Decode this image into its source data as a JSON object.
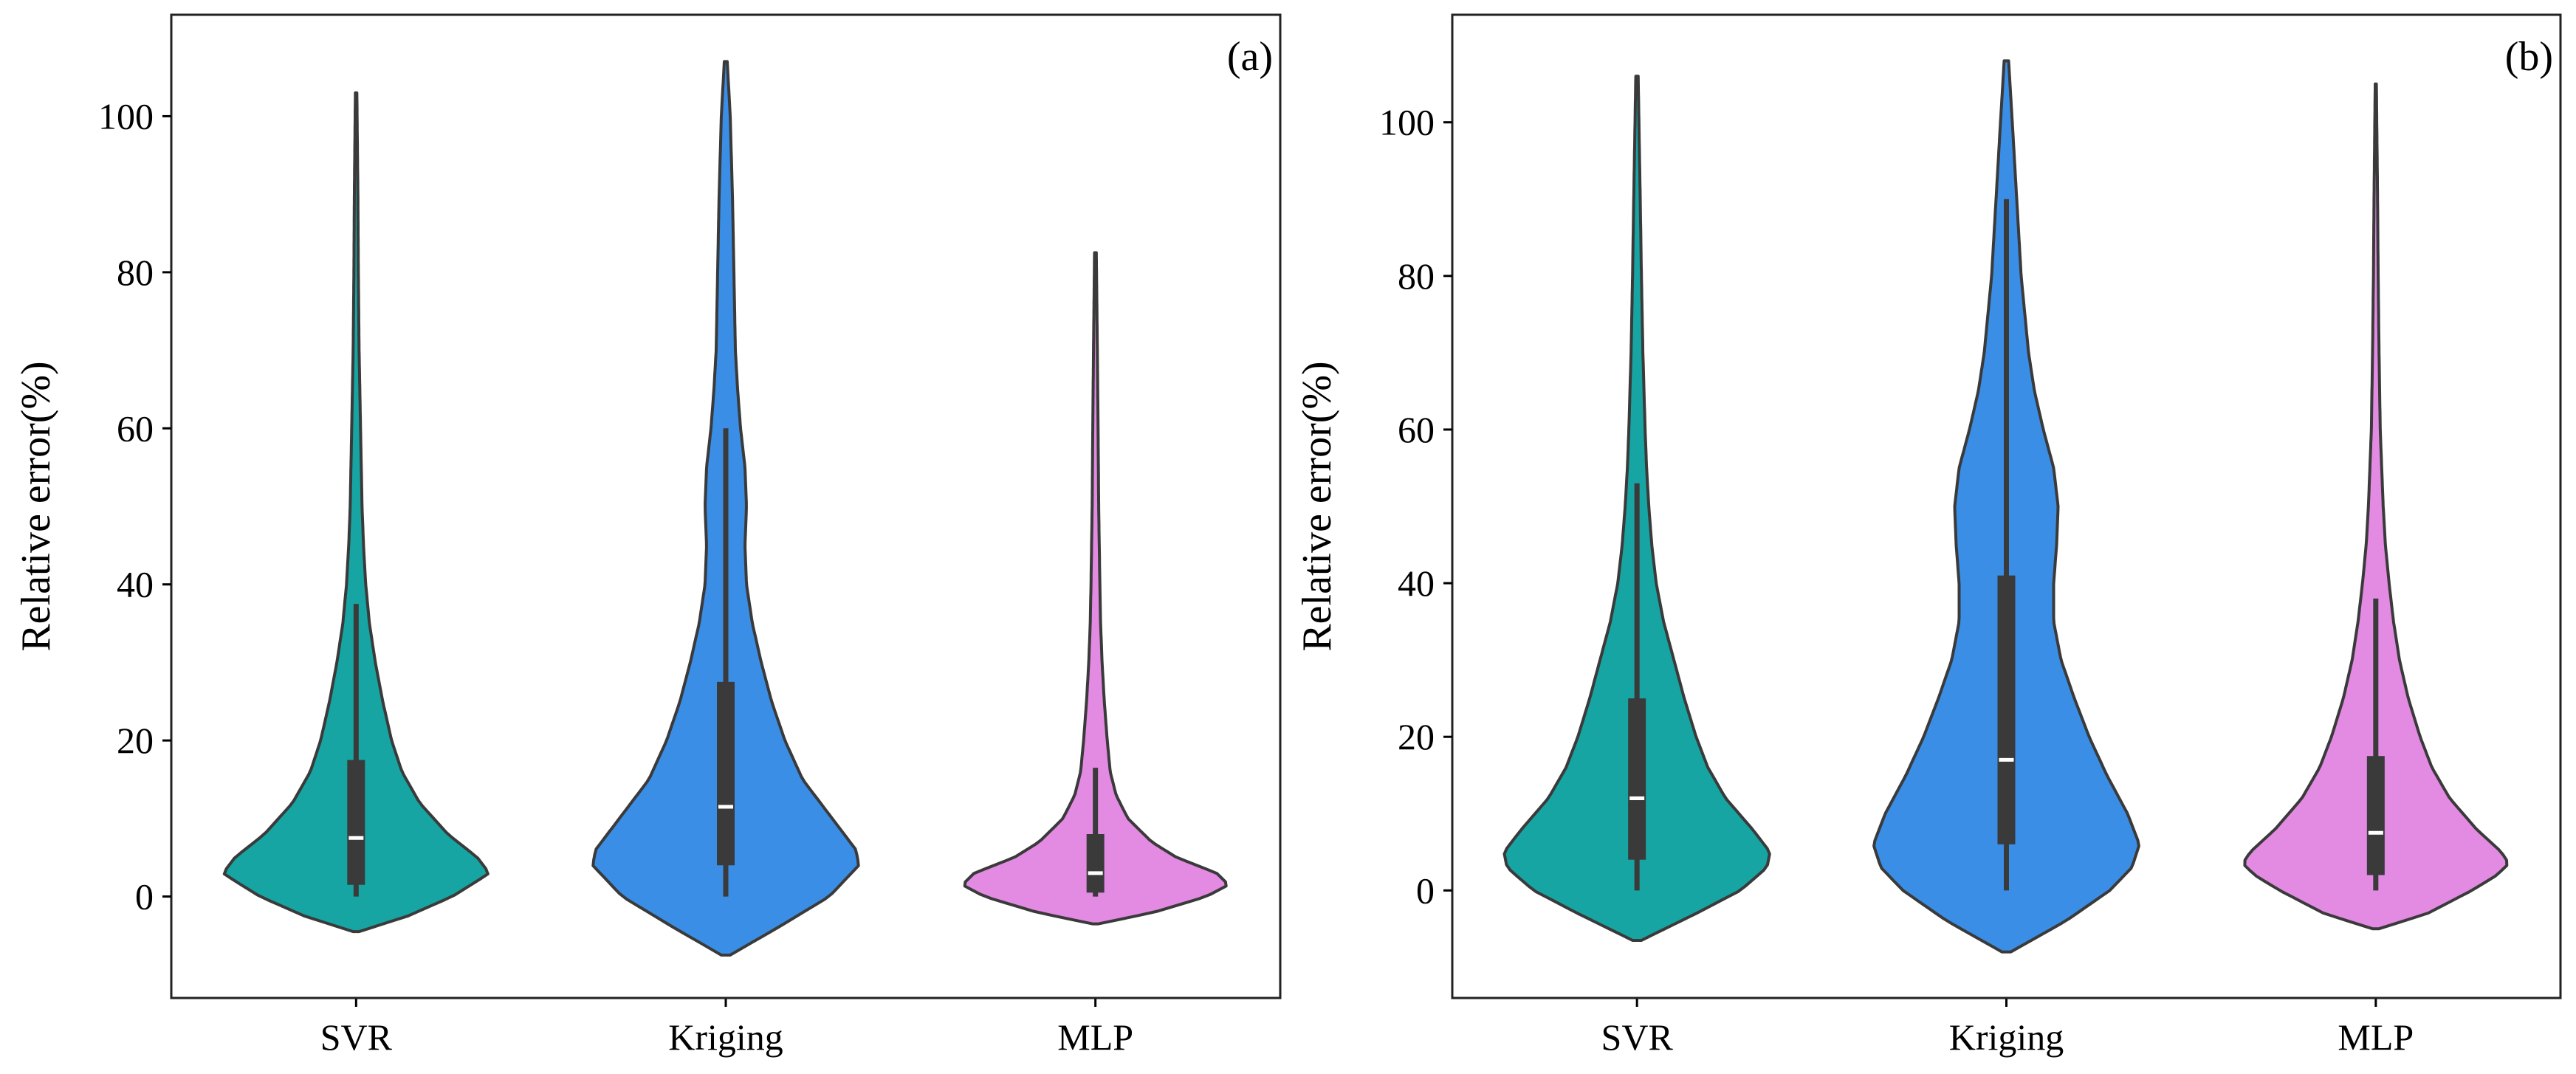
{
  "chart_data": [
    {
      "type": "violin",
      "panel_label": "(a)",
      "ylabel": "Relative error(%)",
      "ylim": [
        -13,
        113
      ],
      "yticks": [
        "0",
        "20",
        "40",
        "60",
        "80",
        "100"
      ],
      "categories": [
        "SVR",
        "Kriging",
        "MLP"
      ],
      "colors": [
        "#16a5a3",
        "#3a8ee6",
        "#e38ae3"
      ],
      "violins": [
        {
          "name": "SVR",
          "min": -4.5,
          "max": 103,
          "whisker_low": 0,
          "whisker_high": 37.5,
          "q1": 1.5,
          "median": 7.5,
          "q3": 17.5,
          "profile": [
            [
              -4.5,
              0.02
            ],
            [
              -2.5,
              0.35
            ],
            [
              0,
              0.65
            ],
            [
              2,
              0.82
            ],
            [
              3,
              0.9
            ],
            [
              5,
              0.82
            ],
            [
              8,
              0.62
            ],
            [
              12,
              0.43
            ],
            [
              16,
              0.31
            ],
            [
              20,
              0.24
            ],
            [
              25,
              0.18
            ],
            [
              30,
              0.13
            ],
            [
              35,
              0.09
            ],
            [
              40,
              0.065
            ],
            [
              45,
              0.05
            ],
            [
              50,
              0.04
            ],
            [
              55,
              0.035
            ],
            [
              60,
              0.03
            ],
            [
              65,
              0.025
            ],
            [
              70,
              0.02
            ],
            [
              80,
              0.015
            ],
            [
              90,
              0.012
            ],
            [
              103,
              0.005
            ]
          ]
        },
        {
          "name": "Kriging",
          "min": -7.5,
          "max": 107,
          "whisker_low": 0,
          "whisker_high": 60,
          "q1": 4,
          "median": 11.5,
          "q3": 27.5,
          "profile": [
            [
              -7.5,
              0.03
            ],
            [
              -4,
              0.35
            ],
            [
              0,
              0.7
            ],
            [
              4,
              0.9
            ],
            [
              6,
              0.88
            ],
            [
              10,
              0.72
            ],
            [
              15,
              0.52
            ],
            [
              20,
              0.4
            ],
            [
              25,
              0.31
            ],
            [
              30,
              0.24
            ],
            [
              35,
              0.18
            ],
            [
              40,
              0.14
            ],
            [
              45,
              0.13
            ],
            [
              50,
              0.14
            ],
            [
              55,
              0.13
            ],
            [
              60,
              0.1
            ],
            [
              65,
              0.08
            ],
            [
              70,
              0.065
            ],
            [
              80,
              0.055
            ],
            [
              90,
              0.045
            ],
            [
              100,
              0.03
            ],
            [
              107,
              0.01
            ]
          ]
        },
        {
          "name": "MLP",
          "min": -3.5,
          "max": 82.5,
          "whisker_low": 0,
          "whisker_high": 16.5,
          "q1": 0.5,
          "median": 3,
          "q3": 8,
          "profile": [
            [
              -3.5,
              0.02
            ],
            [
              -2,
              0.4
            ],
            [
              0,
              0.75
            ],
            [
              1.5,
              0.9
            ],
            [
              3,
              0.82
            ],
            [
              5,
              0.55
            ],
            [
              7,
              0.38
            ],
            [
              10,
              0.22
            ],
            [
              13,
              0.14
            ],
            [
              16,
              0.1
            ],
            [
              20,
              0.08
            ],
            [
              25,
              0.06
            ],
            [
              30,
              0.045
            ],
            [
              35,
              0.035
            ],
            [
              40,
              0.03
            ],
            [
              50,
              0.022
            ],
            [
              60,
              0.018
            ],
            [
              70,
              0.013
            ],
            [
              82.5,
              0.006
            ]
          ]
        }
      ]
    },
    {
      "type": "violin",
      "panel_label": "(b)",
      "ylabel": "Relative error(%)",
      "ylim": [
        -14,
        114
      ],
      "yticks": [
        "0",
        "20",
        "40",
        "60",
        "80",
        "100"
      ],
      "categories": [
        "SVR",
        "Kriging",
        "MLP"
      ],
      "colors": [
        "#16a5a3",
        "#3a8ee6",
        "#e38ae3"
      ],
      "violins": [
        {
          "name": "SVR",
          "min": -6.5,
          "max": 106,
          "whisker_low": 0,
          "whisker_high": 53,
          "q1": 4,
          "median": 12,
          "q3": 25,
          "profile": [
            [
              -6.5,
              0.03
            ],
            [
              -3,
              0.4
            ],
            [
              0,
              0.7
            ],
            [
              3,
              0.88
            ],
            [
              5,
              0.9
            ],
            [
              8,
              0.78
            ],
            [
              12,
              0.6
            ],
            [
              16,
              0.48
            ],
            [
              20,
              0.4
            ],
            [
              25,
              0.32
            ],
            [
              30,
              0.25
            ],
            [
              35,
              0.18
            ],
            [
              40,
              0.13
            ],
            [
              45,
              0.1
            ],
            [
              50,
              0.08
            ],
            [
              55,
              0.065
            ],
            [
              60,
              0.055
            ],
            [
              70,
              0.04
            ],
            [
              80,
              0.03
            ],
            [
              90,
              0.022
            ],
            [
              106,
              0.008
            ]
          ]
        },
        {
          "name": "Kriging",
          "min": -8,
          "max": 108,
          "whisker_low": 0,
          "whisker_high": 90,
          "q1": 6,
          "median": 17,
          "q3": 41,
          "profile": [
            [
              -8,
              0.03
            ],
            [
              -4,
              0.4
            ],
            [
              0,
              0.7
            ],
            [
              3,
              0.85
            ],
            [
              6,
              0.9
            ],
            [
              10,
              0.82
            ],
            [
              15,
              0.68
            ],
            [
              20,
              0.56
            ],
            [
              25,
              0.46
            ],
            [
              30,
              0.37
            ],
            [
              35,
              0.32
            ],
            [
              40,
              0.32
            ],
            [
              45,
              0.34
            ],
            [
              50,
              0.35
            ],
            [
              55,
              0.32
            ],
            [
              60,
              0.25
            ],
            [
              65,
              0.19
            ],
            [
              70,
              0.15
            ],
            [
              80,
              0.1
            ],
            [
              90,
              0.07
            ],
            [
              100,
              0.04
            ],
            [
              108,
              0.015
            ]
          ]
        },
        {
          "name": "MLP",
          "min": -5,
          "max": 105,
          "whisker_low": 0,
          "whisker_high": 38,
          "q1": 2,
          "median": 7.5,
          "q3": 17.5,
          "profile": [
            [
              -5,
              0.02
            ],
            [
              -3,
              0.35
            ],
            [
              0,
              0.65
            ],
            [
              2,
              0.82
            ],
            [
              3.5,
              0.9
            ],
            [
              5,
              0.85
            ],
            [
              8,
              0.68
            ],
            [
              12,
              0.5
            ],
            [
              16,
              0.38
            ],
            [
              20,
              0.3
            ],
            [
              25,
              0.22
            ],
            [
              30,
              0.16
            ],
            [
              35,
              0.12
            ],
            [
              40,
              0.09
            ],
            [
              45,
              0.065
            ],
            [
              50,
              0.05
            ],
            [
              55,
              0.04
            ],
            [
              60,
              0.03
            ],
            [
              70,
              0.022
            ],
            [
              80,
              0.016
            ],
            [
              90,
              0.012
            ],
            [
              105,
              0.004
            ]
          ]
        }
      ]
    }
  ]
}
